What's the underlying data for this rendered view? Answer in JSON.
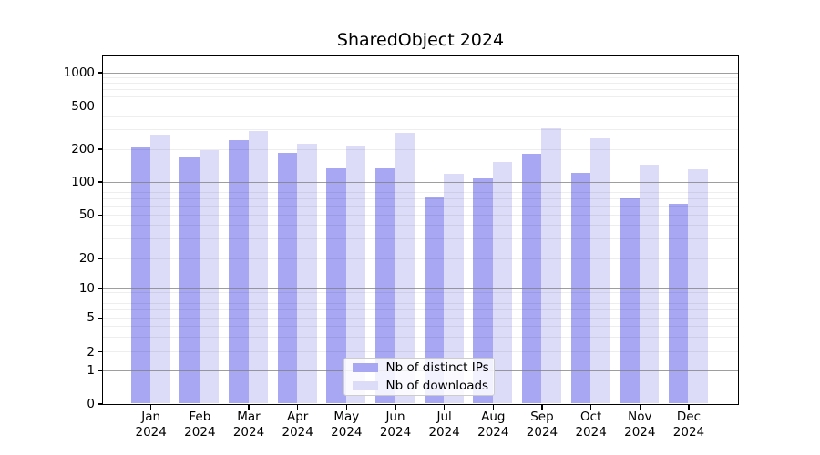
{
  "chart_data": {
    "type": "bar",
    "title": "SharedObject 2024",
    "categories": [
      "Jan",
      "Feb",
      "Mar",
      "Apr",
      "May",
      "Jun",
      "Jul",
      "Aug",
      "Sep",
      "Oct",
      "Nov",
      "Dec"
    ],
    "year_label": "2024",
    "series": [
      {
        "name": "Nb of distinct IPs",
        "color": "#a7a7f3",
        "values": [
          206,
          169,
          240,
          185,
          133,
          131,
          71,
          106,
          181,
          119,
          70,
          63
        ]
      },
      {
        "name": "Nb of downloads",
        "color": "#dcdcf8",
        "values": [
          268,
          195,
          290,
          223,
          212,
          278,
          118,
          150,
          308,
          250,
          142,
          129
        ]
      }
    ],
    "y_ticks": [
      0,
      1,
      2,
      5,
      10,
      20,
      50,
      100,
      200,
      500,
      1000
    ],
    "ylim": [
      0,
      1500
    ],
    "y_scale": "symlog",
    "grid": true,
    "legend_position": "lower center"
  }
}
